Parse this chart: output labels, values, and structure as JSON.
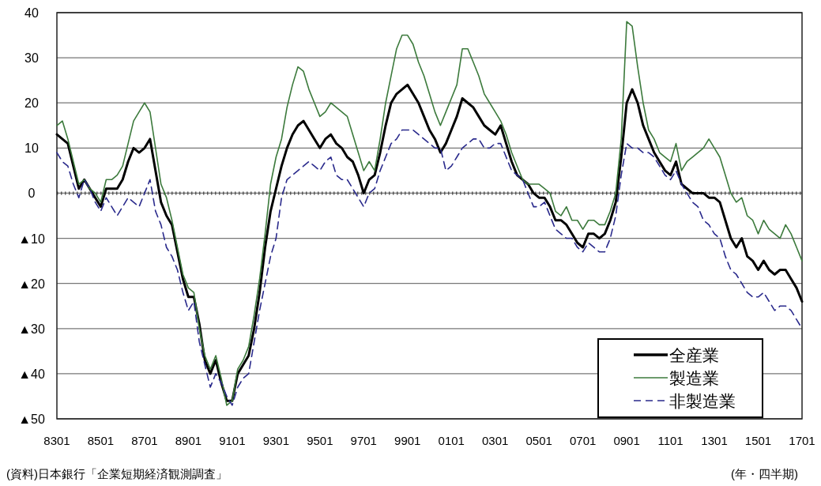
{
  "chart_data": {
    "type": "line",
    "xlabel": "(年・四半期)",
    "annotations": [
      "(資料)日本銀行「企業短期経済観測調査」"
    ],
    "categories": [
      "8301",
      null,
      null,
      null,
      null,
      null,
      null,
      null,
      "8501",
      null,
      null,
      null,
      null,
      null,
      null,
      null,
      "8701",
      null,
      null,
      null,
      null,
      null,
      null,
      null,
      "8901",
      null,
      null,
      null,
      null,
      null,
      null,
      null,
      "9101",
      null,
      null,
      null,
      null,
      null,
      null,
      null,
      "9301",
      null,
      null,
      null,
      null,
      null,
      null,
      null,
      "9501",
      null,
      null,
      null,
      null,
      null,
      null,
      null,
      "9701",
      null,
      null,
      null,
      null,
      null,
      null,
      null,
      "9901",
      null,
      null,
      null,
      null,
      null,
      null,
      null,
      "0101",
      null,
      null,
      null,
      null,
      null,
      null,
      null,
      "0301",
      null,
      null,
      null,
      null,
      null,
      null,
      null,
      "0501",
      null,
      null,
      null,
      null,
      null,
      null,
      null,
      "0701",
      null,
      null,
      null,
      null,
      null,
      null,
      null,
      "0901",
      null,
      null,
      null,
      null,
      null,
      null,
      null,
      "1101",
      null,
      null,
      null,
      null,
      null,
      null,
      null,
      "1301",
      null,
      null,
      null,
      null,
      null,
      null,
      null,
      "1501",
      null,
      null,
      null,
      null,
      null,
      null,
      null,
      "1701"
    ],
    "ylim": [
      -50,
      40
    ],
    "yticks": [
      40,
      30,
      20,
      10,
      0,
      {
        "value": -10,
        "label": "▲10"
      },
      {
        "value": -20,
        "label": "▲20"
      },
      {
        "value": -30,
        "label": "▲30"
      },
      {
        "value": -40,
        "label": "▲40"
      },
      {
        "value": -50,
        "label": "▲50"
      }
    ],
    "grid": "y",
    "legend": "bottom right",
    "marker": "none",
    "ref_lines": [
      {
        "axis": "y",
        "value": 0,
        "line_style": "dotted",
        "color": "#555555"
      }
    ],
    "series": [
      {
        "name": "全産業",
        "color": "#000000",
        "line_style": "solid",
        "values": [
          13,
          12,
          11,
          6,
          1,
          3,
          1,
          -1,
          -3,
          1,
          1,
          1,
          3,
          7,
          10,
          9,
          10,
          12,
          5,
          -2,
          -5,
          -7,
          -13,
          -19,
          -23,
          -23,
          -29,
          -37,
          -40,
          -37,
          -42,
          -46,
          -46,
          -40,
          -38,
          -36,
          -30,
          -22,
          -12,
          -4,
          1,
          6,
          10,
          13,
          15,
          16,
          14,
          12,
          10,
          12,
          13,
          11,
          10,
          8,
          7,
          4,
          0,
          3,
          4,
          9,
          15,
          20,
          22,
          23,
          24,
          22,
          20,
          17,
          14,
          12,
          9,
          11,
          14,
          17,
          21,
          20,
          19,
          17,
          15,
          14,
          13,
          15,
          11,
          7,
          4,
          3,
          2,
          0,
          -1,
          -1,
          -3,
          -6,
          -6,
          -7,
          -9,
          -11,
          -12,
          -9,
          -9,
          -10,
          -9,
          -6,
          -2,
          8,
          20,
          23,
          20,
          15,
          12,
          9,
          7,
          5,
          4,
          7,
          2,
          1,
          0,
          0,
          0,
          -1,
          -1,
          -2,
          -6,
          -10,
          -12,
          -10,
          -14,
          -15,
          -17,
          -15,
          -17,
          -18,
          -17,
          -17,
          -19,
          -21,
          -24
        ]
      },
      {
        "name": "製造業",
        "color": "#3c7a3c",
        "line_style": "solid",
        "values": [
          15,
          16,
          12,
          7,
          2,
          3,
          1,
          0,
          -2,
          3,
          3,
          4,
          6,
          11,
          16,
          18,
          20,
          18,
          10,
          2,
          -1,
          -6,
          -12,
          -18,
          -21,
          -22,
          -30,
          -36,
          -39,
          -36,
          -41,
          -47,
          -46,
          -39,
          -37,
          -34,
          -27,
          -19,
          -9,
          2,
          8,
          12,
          19,
          24,
          28,
          27,
          23,
          20,
          17,
          18,
          20,
          19,
          18,
          17,
          13,
          9,
          5,
          7,
          5,
          12,
          20,
          26,
          32,
          35,
          35,
          33,
          29,
          26,
          22,
          18,
          15,
          18,
          21,
          24,
          32,
          32,
          29,
          26,
          22,
          20,
          18,
          16,
          13,
          9,
          6,
          3,
          2,
          2,
          2,
          1,
          0,
          -4,
          -5,
          -3,
          -6,
          -6,
          -8,
          -6,
          -6,
          -7,
          -7,
          -4,
          0,
          12,
          38,
          37,
          28,
          20,
          14,
          12,
          9,
          8,
          7,
          11,
          5,
          7,
          8,
          9,
          10,
          12,
          10,
          8,
          4,
          0,
          -2,
          -1,
          -5,
          -6,
          -9,
          -6,
          -8,
          -9,
          -10,
          -7,
          -9,
          -12,
          -15
        ]
      },
      {
        "name": "非製造業",
        "color": "#2a2a8c",
        "line_style": "dashed",
        "values": [
          9,
          7,
          6,
          2,
          -1,
          3,
          1,
          -2,
          -4,
          -1,
          -3,
          -5,
          -3,
          -1,
          -2,
          -3,
          0,
          3,
          -4,
          -7,
          -12,
          -14,
          -17,
          -22,
          -26,
          -24,
          -33,
          -38,
          -43,
          -40,
          -42,
          -45,
          -47,
          -43,
          -41,
          -40,
          -33,
          -26,
          -20,
          -14,
          -10,
          -1,
          3,
          4,
          5,
          6,
          7,
          6,
          5,
          7,
          8,
          4,
          3,
          3,
          1,
          -1,
          -3,
          0,
          1,
          5,
          8,
          11,
          12,
          14,
          14,
          14,
          13,
          12,
          11,
          10,
          10,
          5,
          6,
          8,
          10,
          11,
          12,
          12,
          10,
          10,
          11,
          11,
          8,
          5,
          4,
          3,
          0,
          -3,
          -3,
          -2,
          -5,
          -8,
          -9,
          -10,
          -10,
          -12,
          -13,
          -11,
          -12,
          -13,
          -13,
          -10,
          -5,
          4,
          11,
          10,
          10,
          9,
          9,
          8,
          6,
          4,
          3,
          5,
          2,
          0,
          -2,
          -3,
          -6,
          -7,
          -9,
          -10,
          -14,
          -17,
          -18,
          -20,
          -22,
          -23,
          -23,
          -22,
          -24,
          -26,
          -25,
          -25,
          -26,
          -28,
          -30
        ]
      }
    ]
  }
}
